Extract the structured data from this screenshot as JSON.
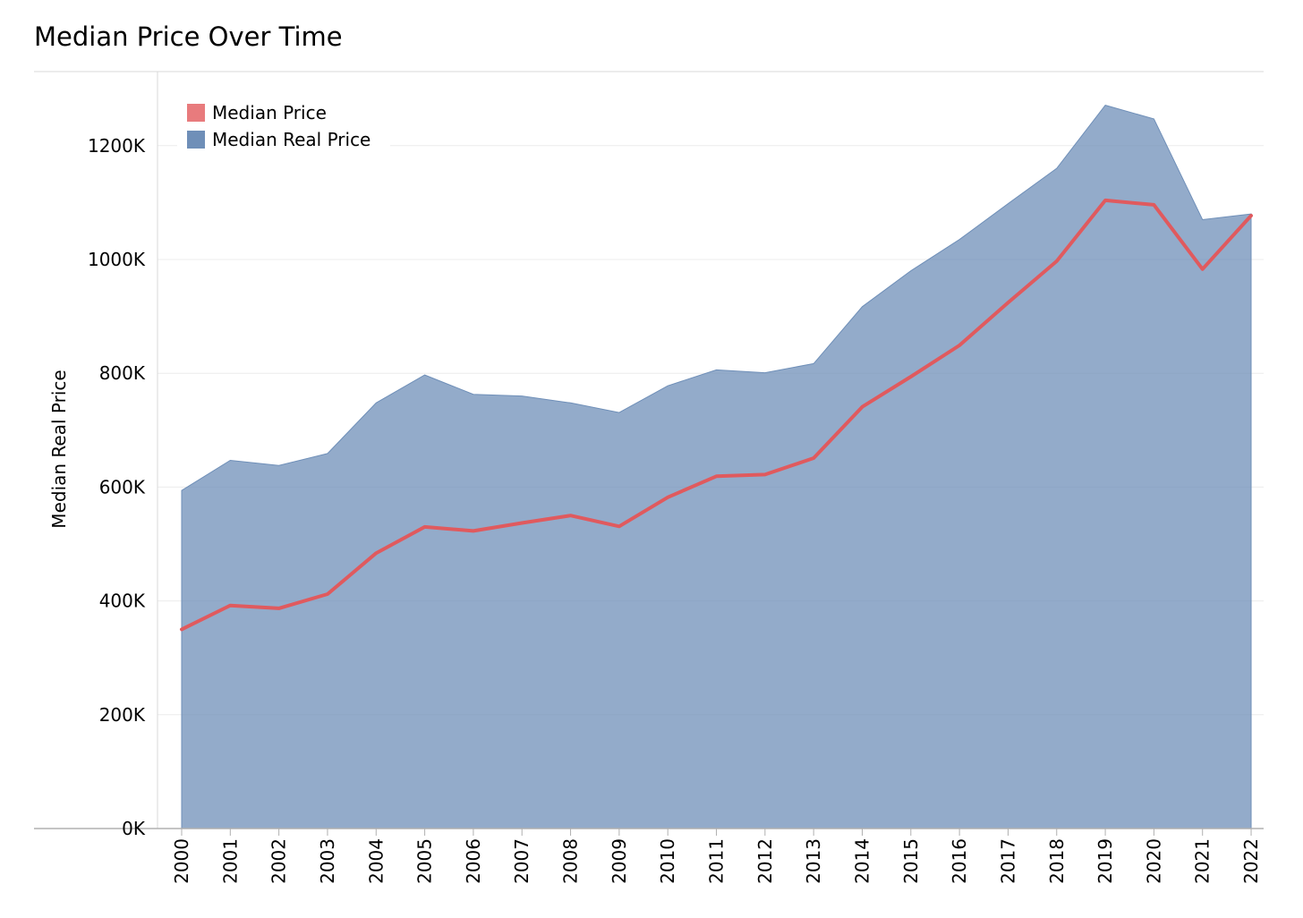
{
  "chart_data": {
    "type": "area",
    "title": "Median Price Over Time",
    "xlabel": "",
    "ylabel": "Median Real Price",
    "ylim": [
      0,
      1300000
    ],
    "y_ticks": [
      0,
      200000,
      400000,
      600000,
      800000,
      1000000,
      1200000
    ],
    "y_tick_labels": [
      "0K",
      "200K",
      "400K",
      "600K",
      "800K",
      "1000K",
      "1200K"
    ],
    "categories": [
      "2000",
      "2001",
      "2002",
      "2003",
      "2004",
      "2005",
      "2006",
      "2007",
      "2008",
      "2009",
      "2010",
      "2011",
      "2012",
      "2013",
      "2014",
      "2015",
      "2016",
      "2017",
      "2018",
      "2019",
      "2020",
      "2021",
      "2022"
    ],
    "series": [
      {
        "name": "Median Price",
        "kind": "line",
        "color": "#e05a5e",
        "values": [
          350000,
          392000,
          387000,
          412000,
          484000,
          530000,
          523000,
          537000,
          550000,
          531000,
          582000,
          619000,
          622000,
          651000,
          741000,
          794000,
          849000,
          924000,
          997000,
          1104000,
          1096000,
          983000,
          1077000
        ]
      },
      {
        "name": "Median Real Price",
        "kind": "area",
        "color": "#6f8fb8",
        "values": [
          594000,
          647000,
          638000,
          659000,
          748000,
          797000,
          763000,
          760000,
          748000,
          731000,
          778000,
          806000,
          801000,
          817000,
          917000,
          980000,
          1035000,
          1098000,
          1160000,
          1271000,
          1247000,
          1070000,
          1080000
        ]
      }
    ],
    "legend": {
      "placement": "top-left"
    },
    "grid": true
  }
}
